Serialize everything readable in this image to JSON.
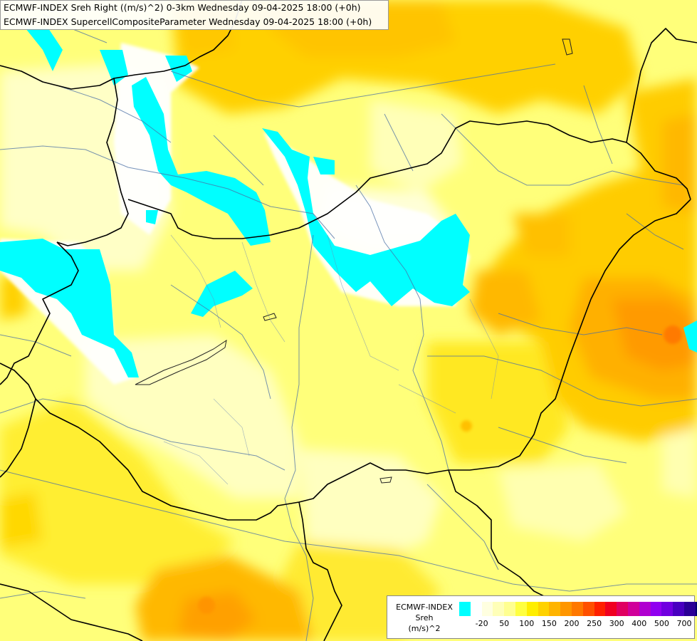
{
  "header": {
    "line1": "ECMWF-INDEX Sreh Right ((m/s)^2) 0-3km Wednesday 09-04-2025 18:00 (+0h)",
    "line2": "ECMWF-INDEX SupercellCompositeParameter Wednesday 09-04-2025 18:00 (+0h)"
  },
  "legend": {
    "title1": "ECMWF-INDEX",
    "title2": "Sreh",
    "title3": "(m/s)^2",
    "colors": [
      "#00ffff",
      "#ffffff",
      "#ffffe0",
      "#ffffb8",
      "#ffff90",
      "#ffff40",
      "#ffee00",
      "#ffd200",
      "#ffb400",
      "#ff9600",
      "#ff7800",
      "#ff5000",
      "#ff2000",
      "#f00020",
      "#e00060",
      "#d0009a",
      "#b000d0",
      "#9000f0",
      "#7000e0",
      "#4800c0",
      "#2a0096",
      "#000070"
    ],
    "ticks": [
      {
        "label": "-20",
        "index": 1
      },
      {
        "label": "50",
        "index": 3
      },
      {
        "label": "100",
        "index": 5
      },
      {
        "label": "150",
        "index": 7
      },
      {
        "label": "200",
        "index": 9
      },
      {
        "label": "250",
        "index": 11
      },
      {
        "label": "300",
        "index": 13
      },
      {
        "label": "400",
        "index": 15
      },
      {
        "label": "500",
        "index": 17
      },
      {
        "label": "700",
        "index": 19
      }
    ]
  }
}
